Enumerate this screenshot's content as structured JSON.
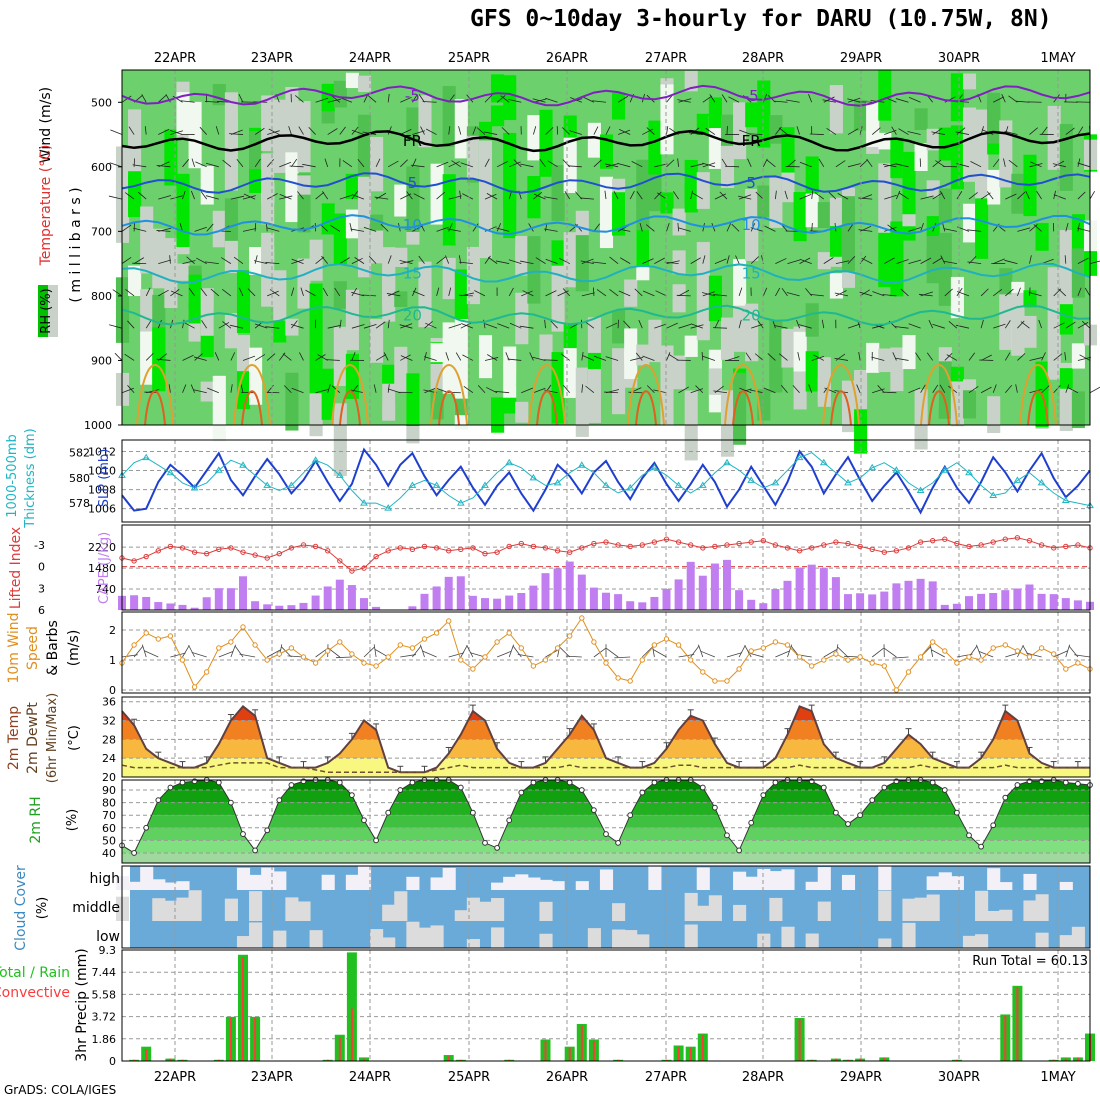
{
  "title": "GFS 0~10day 3-hourly for DARU (10.75W, 8N)",
  "credit": "GrADS: COLA/IGES",
  "dates": [
    "22APR",
    "23APR",
    "24APR",
    "25APR",
    "26APR",
    "27APR",
    "28APR",
    "29APR",
    "30APR",
    "1MAY"
  ],
  "colors": {
    "rh_light": "#f0f8f0",
    "rh_gray": "#c8d2c8",
    "rh_mid": "#6cd06c",
    "rh_high": "#00e600",
    "cloud_blue": "#6aaad8",
    "cloud_gray": "#dcdcdc",
    "cloud_white": "#f4f0f8",
    "slp": "#1f3fcf",
    "thickness": "#21b5c4",
    "lifted": "#dd3c3c",
    "cape": "#c07ef0",
    "wind10": "#e09020",
    "rain": "#20c020",
    "convective": "#ff3a3a"
  },
  "chart_data": [
    {
      "type": "heatmap",
      "panel": "upper-air",
      "ylabel": "(millibars)",
      "legend_labels": [
        "Wind (m/s)",
        "Temperature (°C)",
        "RH (%)"
      ],
      "ylim": [
        1000,
        450
      ],
      "yticks": [
        500,
        600,
        700,
        800,
        900,
        1000
      ],
      "contours": [
        {
          "label": "-5",
          "level": 490,
          "color": "#8020c0"
        },
        {
          "label": "FR",
          "level": 560,
          "color": "#000000"
        },
        {
          "label": "5",
          "level": 625,
          "color": "#2050d0"
        },
        {
          "label": "10",
          "level": 690,
          "color": "#2090e0"
        },
        {
          "label": "15",
          "level": 765,
          "color": "#20b0c0"
        },
        {
          "label": "20",
          "level": 830,
          "color": "#20b890"
        }
      ]
    },
    {
      "type": "line",
      "panel": "slp-thickness",
      "left_axis": {
        "label": "1000-500mb Thickness (dm)",
        "ticks": [
          578,
          580,
          582
        ]
      },
      "right_axis": {
        "label": "SLP (mb)",
        "ticks": [
          1006,
          1008,
          1010,
          1012
        ]
      },
      "series": [
        {
          "name": "SLP",
          "axis": "right",
          "values": [
            1007.4,
            1005.8,
            1006,
            1008.8,
            1010.6,
            1009.5,
            1008.2,
            1010,
            1011.8,
            1009,
            1007.4,
            1009.4,
            1011.2,
            1009.6,
            1007.6,
            1009,
            1011,
            1008.8,
            1006.8,
            1008.6,
            1012.2,
            1010.6,
            1008.4,
            1010.6,
            1011.8,
            1009.4,
            1007.4,
            1009,
            1010.4,
            1008.2,
            1006.4,
            1008.4,
            1009.8,
            1007.6,
            1005.8,
            1008,
            1010.6,
            1009.4,
            1007.6,
            1009.8,
            1011,
            1008.8,
            1007,
            1009.2,
            1010.8,
            1008.6,
            1006.8,
            1008.6,
            1010.6,
            1008.8,
            1006.2,
            1008,
            1010.4,
            1008.4,
            1006.4,
            1008.8,
            1012,
            1010.4,
            1007.6,
            1009.6,
            1011.4,
            1009,
            1006.8,
            1008.4,
            1009.8,
            1007.8,
            1005.6,
            1008.2,
            1010.4,
            1008.2,
            1006.6,
            1008.8,
            1011.4,
            1009.8,
            1007.8,
            1010,
            1011.8,
            1009.2,
            1007.2,
            1008.4,
            1010
          ]
        },
        {
          "name": "Thickness",
          "axis": "left",
          "values": [
            580.2,
            581.2,
            581.6,
            581,
            580.4,
            579.6,
            579.2,
            579.6,
            580.6,
            581.4,
            581,
            580.2,
            579.4,
            579,
            579.4,
            580.4,
            581.4,
            581,
            580.2,
            579,
            578,
            578,
            577.6,
            578.4,
            579.4,
            579.8,
            579.4,
            578.6,
            578,
            578.4,
            579.4,
            580.4,
            581.2,
            580.8,
            580,
            579.4,
            579.6,
            580.4,
            581,
            580.4,
            579.4,
            578.8,
            579.2,
            580.2,
            580.8,
            580.2,
            579.4,
            578.8,
            579.4,
            580.4,
            581.2,
            580.6,
            579.8,
            579.2,
            579.6,
            580.6,
            581.6,
            582,
            581.2,
            580.4,
            579.6,
            580,
            580.8,
            581.2,
            580.6,
            579.6,
            579,
            579.6,
            580.6,
            581.2,
            580.4,
            579.4,
            578.6,
            578.8,
            579.8,
            580.4,
            579.6,
            578.8,
            578.2,
            578,
            577.8
          ]
        }
      ]
    },
    {
      "type": "bar",
      "panel": "lifted-cape",
      "left_axis": {
        "label": "Lifted Index",
        "ticks": [
          -3,
          0,
          3,
          6
        ]
      },
      "right_axis": {
        "label": "CAPE (J/kg)",
        "ticks": [
          740,
          1480,
          2220
        ]
      },
      "series": [
        {
          "name": "Lifted Index",
          "axis": "left",
          "values": [
            -1.2,
            -0.8,
            -1.4,
            -2.2,
            -2.8,
            -2.6,
            -2,
            -1.8,
            -2.4,
            -2.6,
            -2,
            -1.6,
            -1.2,
            -1.8,
            -2.6,
            -3,
            -2.8,
            -2.2,
            -0.8,
            0.6,
            0.2,
            -1.4,
            -2.2,
            -2.6,
            -2.4,
            -2.8,
            -2.6,
            -2.2,
            -2.4,
            -2.6,
            -1.8,
            -2,
            -2.8,
            -3.2,
            -2.8,
            -2.6,
            -2.2,
            -2,
            -2.6,
            -3.2,
            -3.4,
            -3,
            -2.8,
            -3,
            -3.4,
            -3.8,
            -3.4,
            -3,
            -2.6,
            -2.8,
            -3,
            -3.2,
            -3.4,
            -3.6,
            -3,
            -2.6,
            -2.2,
            -2.6,
            -3,
            -3.4,
            -3.2,
            -2.8,
            -2.4,
            -2,
            -2.2,
            -2.6,
            -3.4,
            -3.6,
            -3.8,
            -3.2,
            -2.8,
            -3,
            -3.4,
            -3.8,
            -4,
            -3.6,
            -3,
            -2.6,
            -2.8,
            -3,
            -2.6
          ]
        },
        {
          "name": "CAPE",
          "axis": "right",
          "values": [
            500,
            520,
            460,
            280,
            230,
            180,
            80,
            450,
            770,
            770,
            1190,
            310,
            200,
            150,
            170,
            250,
            510,
            830,
            1070,
            880,
            420,
            110,
            0,
            0,
            130,
            570,
            830,
            1170,
            1190,
            500,
            420,
            400,
            510,
            600,
            860,
            1300,
            1470,
            1710,
            1250,
            790,
            610,
            560,
            310,
            270,
            460,
            740,
            1080,
            1700,
            1210,
            1640,
            1770,
            700,
            360,
            240,
            740,
            1030,
            1500,
            1600,
            1480,
            1160,
            560,
            590,
            550,
            650,
            940,
            1030,
            1100,
            1010,
            180,
            220,
            490,
            570,
            600,
            700,
            760,
            900,
            570,
            560,
            420,
            340,
            290
          ]
        }
      ]
    },
    {
      "type": "line",
      "panel": "wind10m",
      "ylabel": "10m Wind Speed & Barbs (m/s)",
      "yticks": [
        0,
        1,
        2
      ],
      "series": [
        {
          "name": "10m Wind Speed",
          "values": [
            0.9,
            1.5,
            1.9,
            1.7,
            1.8,
            1,
            0.1,
            0.6,
            1.4,
            1.6,
            2.1,
            1.5,
            1,
            1.2,
            1.4,
            1.1,
            0.9,
            1.3,
            1.6,
            1.2,
            0.9,
            0.8,
            1.1,
            1.5,
            1.4,
            1.7,
            1.9,
            2.3,
            1,
            0.7,
            1.1,
            1.6,
            1.9,
            1.4,
            0.8,
            1,
            1.4,
            1.8,
            2.4,
            1.6,
            0.9,
            0.4,
            0.3,
            1,
            1.5,
            1.7,
            1.5,
            1,
            0.6,
            0.3,
            0.3,
            0.7,
            1.3,
            1.4,
            1.6,
            1.5,
            1.1,
            0.8,
            1,
            1.2,
            1,
            1.1,
            0.9,
            0.8,
            0,
            0.6,
            1.1,
            1.6,
            1.3,
            0.9,
            1.1,
            1,
            1.4,
            1.5,
            1.3,
            1.1,
            1.4,
            1.2,
            0.7,
            0.9,
            0.7
          ]
        }
      ]
    },
    {
      "type": "area",
      "panel": "temp2m",
      "ylabel": "2m Temp 2m DewPt (6hr Min/Max) (°C)",
      "yticks": [
        20,
        24,
        28,
        32,
        36
      ],
      "series": [
        {
          "name": "2m Temp",
          "values": [
            34,
            31,
            26,
            24,
            23,
            22,
            22,
            23,
            27,
            32,
            35,
            33,
            24,
            23,
            22,
            22,
            22,
            23,
            25,
            28,
            32,
            30,
            22,
            21,
            21,
            21,
            22,
            25,
            29,
            34,
            32,
            26,
            23,
            22,
            22,
            23,
            26,
            29,
            33,
            30,
            24,
            23,
            22,
            22,
            23,
            26,
            30,
            33,
            32,
            27,
            23,
            22,
            22,
            22,
            24,
            29,
            35,
            34,
            27,
            24,
            23,
            22,
            22,
            23,
            26,
            29,
            27,
            24,
            23,
            22,
            22,
            24,
            28,
            34,
            32,
            25,
            23,
            22,
            22,
            22,
            22
          ]
        },
        {
          "name": "2m DewPt",
          "values": [
            22.5,
            22,
            22,
            22,
            22,
            22,
            22,
            22,
            22.5,
            23,
            23,
            23,
            23,
            22,
            22,
            22,
            21.5,
            21,
            21,
            21,
            21,
            21,
            21,
            21,
            21,
            21,
            21.5,
            22,
            22.5,
            22,
            22,
            22,
            22,
            22,
            22,
            22,
            22,
            22.5,
            22,
            22,
            22,
            22,
            22,
            22,
            22,
            22,
            22.5,
            22.5,
            22,
            22,
            22,
            22,
            22,
            22,
            22,
            22,
            22.5,
            22,
            22,
            22,
            22,
            22,
            22,
            22,
            22,
            22,
            22.5,
            22,
            22,
            22,
            22,
            22,
            22,
            22.5,
            22,
            22,
            22,
            22,
            22,
            22,
            22
          ]
        }
      ]
    },
    {
      "type": "area",
      "panel": "rh2m",
      "ylabel": "2m RH (%)",
      "yticks": [
        40,
        50,
        60,
        70,
        80,
        90
      ],
      "series": [
        {
          "name": "2m RH",
          "values": [
            46,
            40,
            60,
            82,
            92,
            96,
            97,
            98,
            96,
            80,
            55,
            42,
            58,
            82,
            94,
            97,
            98,
            98,
            96,
            86,
            66,
            50,
            72,
            90,
            96,
            98,
            98,
            98,
            92,
            72,
            48,
            44,
            66,
            88,
            96,
            98,
            98,
            96,
            90,
            74,
            55,
            48,
            70,
            88,
            96,
            98,
            98,
            98,
            92,
            76,
            54,
            42,
            64,
            86,
            96,
            98,
            98,
            97,
            92,
            72,
            63,
            70,
            82,
            92,
            97,
            98,
            98,
            96,
            90,
            72,
            54,
            45,
            62,
            84,
            94,
            97,
            97,
            98,
            96,
            95,
            94
          ]
        }
      ]
    },
    {
      "type": "heatmap",
      "panel": "cloud",
      "ylabel": "Cloud Cover (%)",
      "row_labels": [
        "high",
        "middle",
        "low"
      ]
    },
    {
      "type": "bar",
      "panel": "precip",
      "ylabel": "3hr Precip (mm)",
      "legend_labels": [
        "Total / Rain",
        "Convective"
      ],
      "annotation": "Run Total = 60.13",
      "ylim": [
        0,
        9.3
      ],
      "yticks": [
        0,
        1.86,
        3.72,
        5.58,
        7.44,
        9.3
      ],
      "series": [
        {
          "name": "Total",
          "values": [
            0,
            0.1,
            1.2,
            0,
            0.2,
            0.1,
            0,
            0,
            0.1,
            3.7,
            8.9,
            3.7,
            0,
            0,
            0,
            0,
            0,
            0.1,
            2.2,
            9.1,
            0.3,
            0,
            0,
            0,
            0,
            0,
            0,
            0.5,
            0.1,
            0,
            0,
            0,
            0.1,
            0,
            0,
            1.8,
            0,
            1.2,
            3.1,
            1.8,
            0,
            0.1,
            0,
            0,
            0,
            0.1,
            1.3,
            1.2,
            2.3,
            0,
            0,
            0,
            0,
            0,
            0,
            0,
            3.6,
            0.1,
            0,
            0.2,
            0.1,
            0.2,
            0,
            0.3,
            0,
            0,
            0,
            0,
            0,
            0.1,
            0,
            0,
            0,
            3.9,
            6.3,
            0,
            0,
            0.1,
            0.3,
            0.3,
            2.3
          ]
        },
        {
          "name": "Convective",
          "values": [
            0,
            0.1,
            1,
            0,
            0.2,
            0.1,
            0,
            0,
            0.1,
            3.6,
            8.7,
            3.6,
            0,
            0,
            0,
            0,
            0,
            0.1,
            2,
            4.4,
            0.2,
            0,
            0,
            0,
            0,
            0,
            0,
            0.4,
            0.1,
            0,
            0,
            0,
            0.1,
            0,
            0,
            1.7,
            0,
            1.1,
            3,
            1.7,
            0,
            0.1,
            0,
            0,
            0,
            0.1,
            1.2,
            1.1,
            2.2,
            0,
            0,
            0,
            0,
            0,
            0,
            0,
            3.5,
            0.1,
            0,
            0.2,
            0.1,
            0.2,
            0,
            0.3,
            0,
            0,
            0,
            0,
            0,
            0.1,
            0,
            0,
            0,
            3.8,
            6.2,
            0,
            0,
            0.1,
            0.2,
            0.3,
            2.2
          ]
        }
      ]
    }
  ]
}
